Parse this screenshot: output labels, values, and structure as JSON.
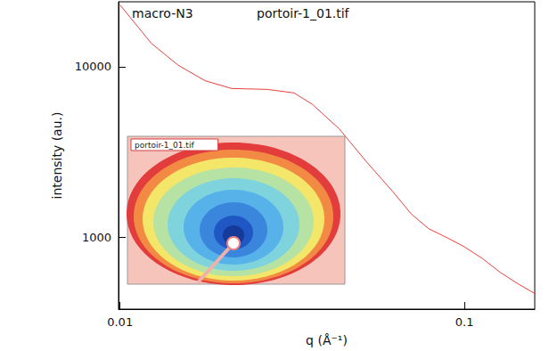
{
  "chart_data": {
    "type": "line",
    "x_label": "q (Å⁻¹)",
    "y_label": "intensity (au.)",
    "annotations": [
      {
        "text": "macro-N3"
      },
      {
        "text": "portoir-1_01.tif"
      },
      {
        "text": "portoir-1_01.tif"
      }
    ],
    "x": [
      0.01,
      0.01233,
      0.01475,
      0.01765,
      0.0211,
      0.0268,
      0.032,
      0.0362,
      0.0433,
      0.0518,
      0.062,
      0.07,
      0.0787,
      0.0887,
      0.1,
      0.1127,
      0.127,
      0.143,
      0.1615
    ],
    "values": [
      23000,
      13700,
      10200,
      8280,
      7450,
      7360,
      7020,
      6010,
      4320,
      2790,
      1850,
      1375,
      1125,
      1000,
      880,
      753,
      624,
      535,
      464
    ],
    "color": "#e8403c",
    "xlim": [
      0.0099,
      0.16
    ],
    "ylim": [
      380,
      24000
    ],
    "xticks": [
      0.01,
      0.1
    ],
    "yticks": [
      1000,
      10000
    ],
    "log": true,
    "grid": false
  }
}
